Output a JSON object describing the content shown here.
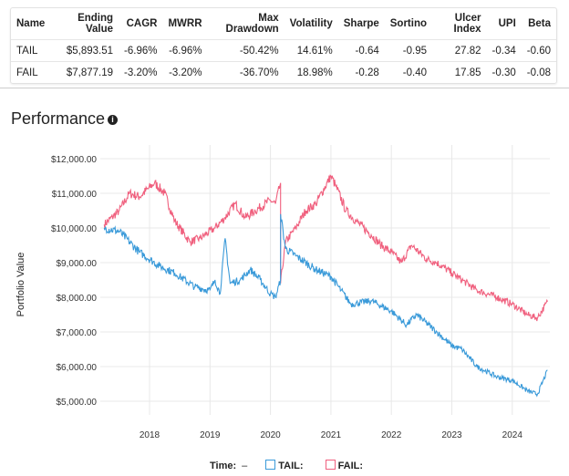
{
  "table": {
    "headers": [
      "Name",
      "Ending Value",
      "CAGR",
      "MWRR",
      "Max Drawdown",
      "Volatility",
      "Sharpe",
      "Sortino",
      "Ulcer Index",
      "UPI",
      "Beta"
    ],
    "rows": [
      [
        "TAIL",
        "$5,893.51",
        "-6.96%",
        "-6.96%",
        "-50.42%",
        "14.61%",
        "-0.64",
        "-0.95",
        "27.82",
        "-0.34",
        "-0.60"
      ],
      [
        "FAIL",
        "$7,877.19",
        "-3.20%",
        "-3.20%",
        "-36.70%",
        "18.98%",
        "-0.28",
        "-0.40",
        "17.85",
        "-0.30",
        "-0.08"
      ]
    ]
  },
  "title": "Performance",
  "info_icon": "i",
  "chart_data": {
    "type": "line",
    "ylabel": "Portfolio Value",
    "ylim": [
      5000,
      12000
    ],
    "yticks": [
      "$5,000.00",
      "$6,000.00",
      "$7,000.00",
      "$8,000.00",
      "$9,000.00",
      "$10,000.00",
      "$11,000.00",
      "$12,000.00"
    ],
    "xticks": [
      "2018",
      "2019",
      "2020",
      "2021",
      "2022",
      "2023",
      "2024"
    ],
    "grid": true,
    "legend_position": "bottom",
    "legend_time_label": "Time:",
    "legend_time_value": "–",
    "series": [
      {
        "name": "TAIL:",
        "color": "#3a9ad9",
        "x": [
          "2017-04",
          "2017-07",
          "2017-11",
          "2018-03",
          "2018-06",
          "2018-10",
          "2019-01",
          "2019-02",
          "2019-03",
          "2019-04",
          "2019-05",
          "2019-07",
          "2019-09",
          "2019-11",
          "2020-01",
          "2020-02",
          "2020-03",
          "2020-03",
          "2020-04",
          "2020-06",
          "2020-10",
          "2021-01",
          "2021-03",
          "2021-05",
          "2021-09",
          "2022-01",
          "2022-04",
          "2022-06",
          "2022-10",
          "2023-01",
          "2023-03",
          "2023-06",
          "2023-10",
          "2024-01",
          "2024-04",
          "2024-06",
          "2024-08"
        ],
        "values": [
          10000,
          9900,
          9300,
          8900,
          8700,
          8300,
          8200,
          8500,
          8100,
          9700,
          8400,
          8500,
          8800,
          8500,
          8100,
          8000,
          8500,
          10400,
          9400,
          9200,
          8800,
          8600,
          8200,
          7800,
          7900,
          7600,
          7200,
          7500,
          7000,
          6600,
          6500,
          6000,
          5700,
          5600,
          5300,
          5200,
          5893.51
        ]
      },
      {
        "name": "FAIL:",
        "color": "#f0607e",
        "x": [
          "2017-04",
          "2017-07",
          "2017-09",
          "2017-11",
          "2018-02",
          "2018-04",
          "2018-06",
          "2018-09",
          "2018-11",
          "2019-02",
          "2019-04",
          "2019-06",
          "2019-08",
          "2019-10",
          "2020-01",
          "2020-02",
          "2020-03",
          "2020-03",
          "2020-04",
          "2020-06",
          "2020-08",
          "2020-10",
          "2021-01",
          "2021-02",
          "2021-04",
          "2021-06",
          "2021-09",
          "2021-11",
          "2022-01",
          "2022-03",
          "2022-05",
          "2022-08",
          "2022-10",
          "2023-01",
          "2023-03",
          "2023-06",
          "2023-10",
          "2024-01",
          "2024-04",
          "2024-06",
          "2024-08"
        ],
        "values": [
          10100,
          10500,
          11000,
          10900,
          11300,
          11000,
          10200,
          9600,
          9700,
          10000,
          10300,
          10700,
          10300,
          10500,
          10800,
          10700,
          11300,
          8400,
          9600,
          10000,
          10500,
          10700,
          11500,
          11200,
          10500,
          10200,
          9800,
          9500,
          9300,
          9000,
          9500,
          9100,
          9000,
          8700,
          8500,
          8200,
          8000,
          7800,
          7500,
          7400,
          7877.19
        ]
      }
    ]
  }
}
